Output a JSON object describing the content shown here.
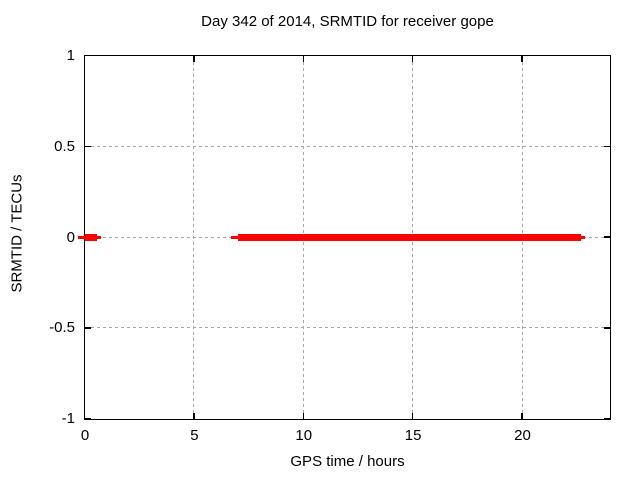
{
  "chart_data": {
    "type": "line",
    "title": "Day 342 of 2014, SRMTID for receiver gope",
    "xlabel": "GPS time / hours",
    "ylabel": "SRMTID / TECUs",
    "xlim": [
      0,
      24
    ],
    "ylim": [
      -1,
      1
    ],
    "x_ticks": [
      0,
      5,
      10,
      15,
      20
    ],
    "x_tick_labels": [
      "0",
      "5",
      "10",
      "15",
      "20"
    ],
    "y_ticks": [
      -1,
      -0.5,
      0,
      0.5,
      1
    ],
    "y_tick_labels": [
      "-1",
      "-0.5",
      "0",
      "0.5",
      "1"
    ],
    "grid": true,
    "legend": "none",
    "series": [
      {
        "name": "SRMTID",
        "color": "#ff0000",
        "style": "thick horizontal line segments at constant value",
        "segments": [
          {
            "x_start": 0.0,
            "x_end": 0.55,
            "y": 0
          },
          {
            "x_start": 7.0,
            "x_end": 22.7,
            "y": 0
          }
        ]
      }
    ]
  },
  "colors": {
    "background": "#ffffff",
    "axis": "#000000",
    "grid": "#a8a8a8",
    "line": "#ff0000"
  }
}
